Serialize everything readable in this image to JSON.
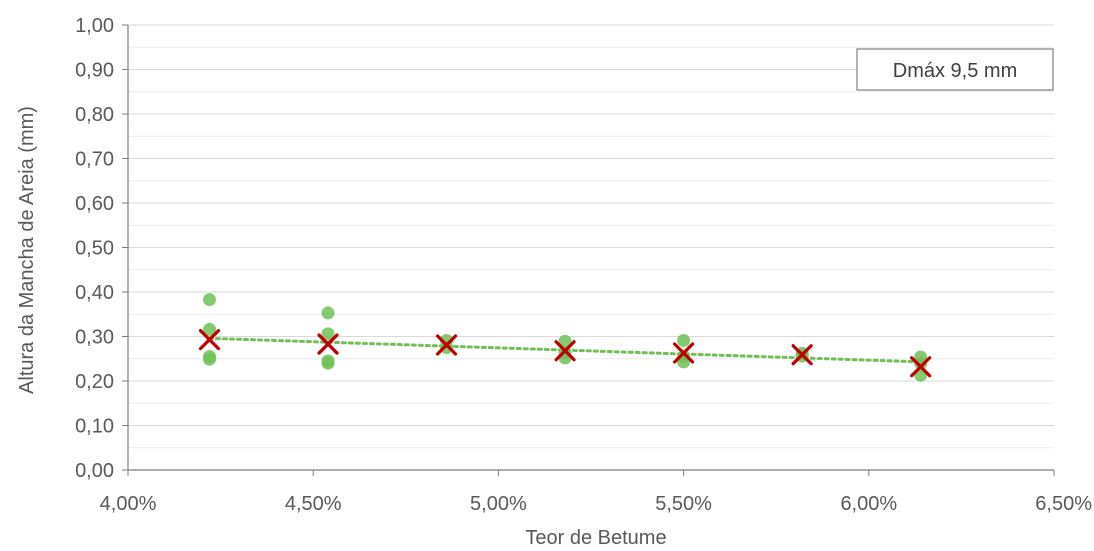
{
  "chart_data": {
    "type": "scatter",
    "title": "",
    "xlabel": "Teor de Betume",
    "ylabel": "Altura da Mancha de Areia (mm)",
    "xlim": [
      0.04,
      0.065
    ],
    "ylim": [
      0,
      1
    ],
    "x_ticks": [
      0.04,
      0.045,
      0.05,
      0.055,
      0.06,
      0.065
    ],
    "x_tick_labels": [
      "4,00%",
      "4,50%",
      "5,00%",
      "5,50%",
      "6,00%",
      "6,50%"
    ],
    "y_ticks": [
      0,
      0.1,
      0.2,
      0.3,
      0.4,
      0.5,
      0.6,
      0.7,
      0.8,
      0.9,
      1.0
    ],
    "y_tick_labels": [
      "0,00",
      "0,10",
      "0,20",
      "0,30",
      "0,40",
      "0,50",
      "0,60",
      "0,70",
      "0,80",
      "0,90",
      "1,00"
    ],
    "grid": true,
    "legend_box_text": "Dmáx 9,5 mm",
    "legend_placement": "top-right",
    "series": [
      {
        "marker": "circle",
        "color": "#70BF57",
        "points": [
          [
            0.0422,
            0.383
          ],
          [
            0.0422,
            0.316
          ],
          [
            0.0422,
            0.255
          ],
          [
            0.0422,
            0.249
          ],
          [
            0.0454,
            0.353
          ],
          [
            0.0454,
            0.306
          ],
          [
            0.0454,
            0.245
          ],
          [
            0.0454,
            0.24
          ],
          [
            0.0486,
            0.291
          ],
          [
            0.0486,
            0.275
          ],
          [
            0.0518,
            0.289
          ],
          [
            0.0518,
            0.263
          ],
          [
            0.0518,
            0.252
          ],
          [
            0.055,
            0.291
          ],
          [
            0.055,
            0.255
          ],
          [
            0.055,
            0.243
          ],
          [
            0.0582,
            0.262
          ],
          [
            0.0582,
            0.256
          ],
          [
            0.0614,
            0.254
          ],
          [
            0.0614,
            0.24
          ],
          [
            0.0614,
            0.213
          ]
        ]
      },
      {
        "marker": "x",
        "color": "#C00000",
        "points": [
          [
            0.0422,
            0.293
          ],
          [
            0.0454,
            0.283
          ],
          [
            0.0486,
            0.281
          ],
          [
            0.0518,
            0.268
          ],
          [
            0.055,
            0.263
          ],
          [
            0.0582,
            0.259
          ],
          [
            0.0614,
            0.232
          ]
        ]
      }
    ],
    "trendline": {
      "style": "dotted",
      "color": "#70BF57",
      "from": [
        0.0422,
        0.296
      ],
      "to": [
        0.0614,
        0.243
      ]
    }
  }
}
